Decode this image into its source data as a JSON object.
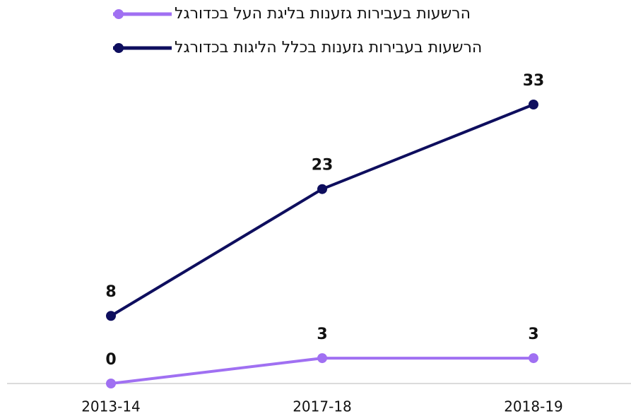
{
  "chart_data": {
    "type": "line",
    "categories": [
      "2013-14",
      "2017-18",
      "2018-19"
    ],
    "series": [
      {
        "name": "הרשעות בעבירות גזענות בליגת העל בכדורגל",
        "color": "#a070f2",
        "values": [
          0,
          3,
          3
        ]
      },
      {
        "name": "הרשעות בעבירות גזענות בכלל הליגות בכדורגל",
        "color": "#0e0e5e",
        "values": [
          8,
          23,
          33
        ]
      }
    ],
    "legend": "top"
  }
}
